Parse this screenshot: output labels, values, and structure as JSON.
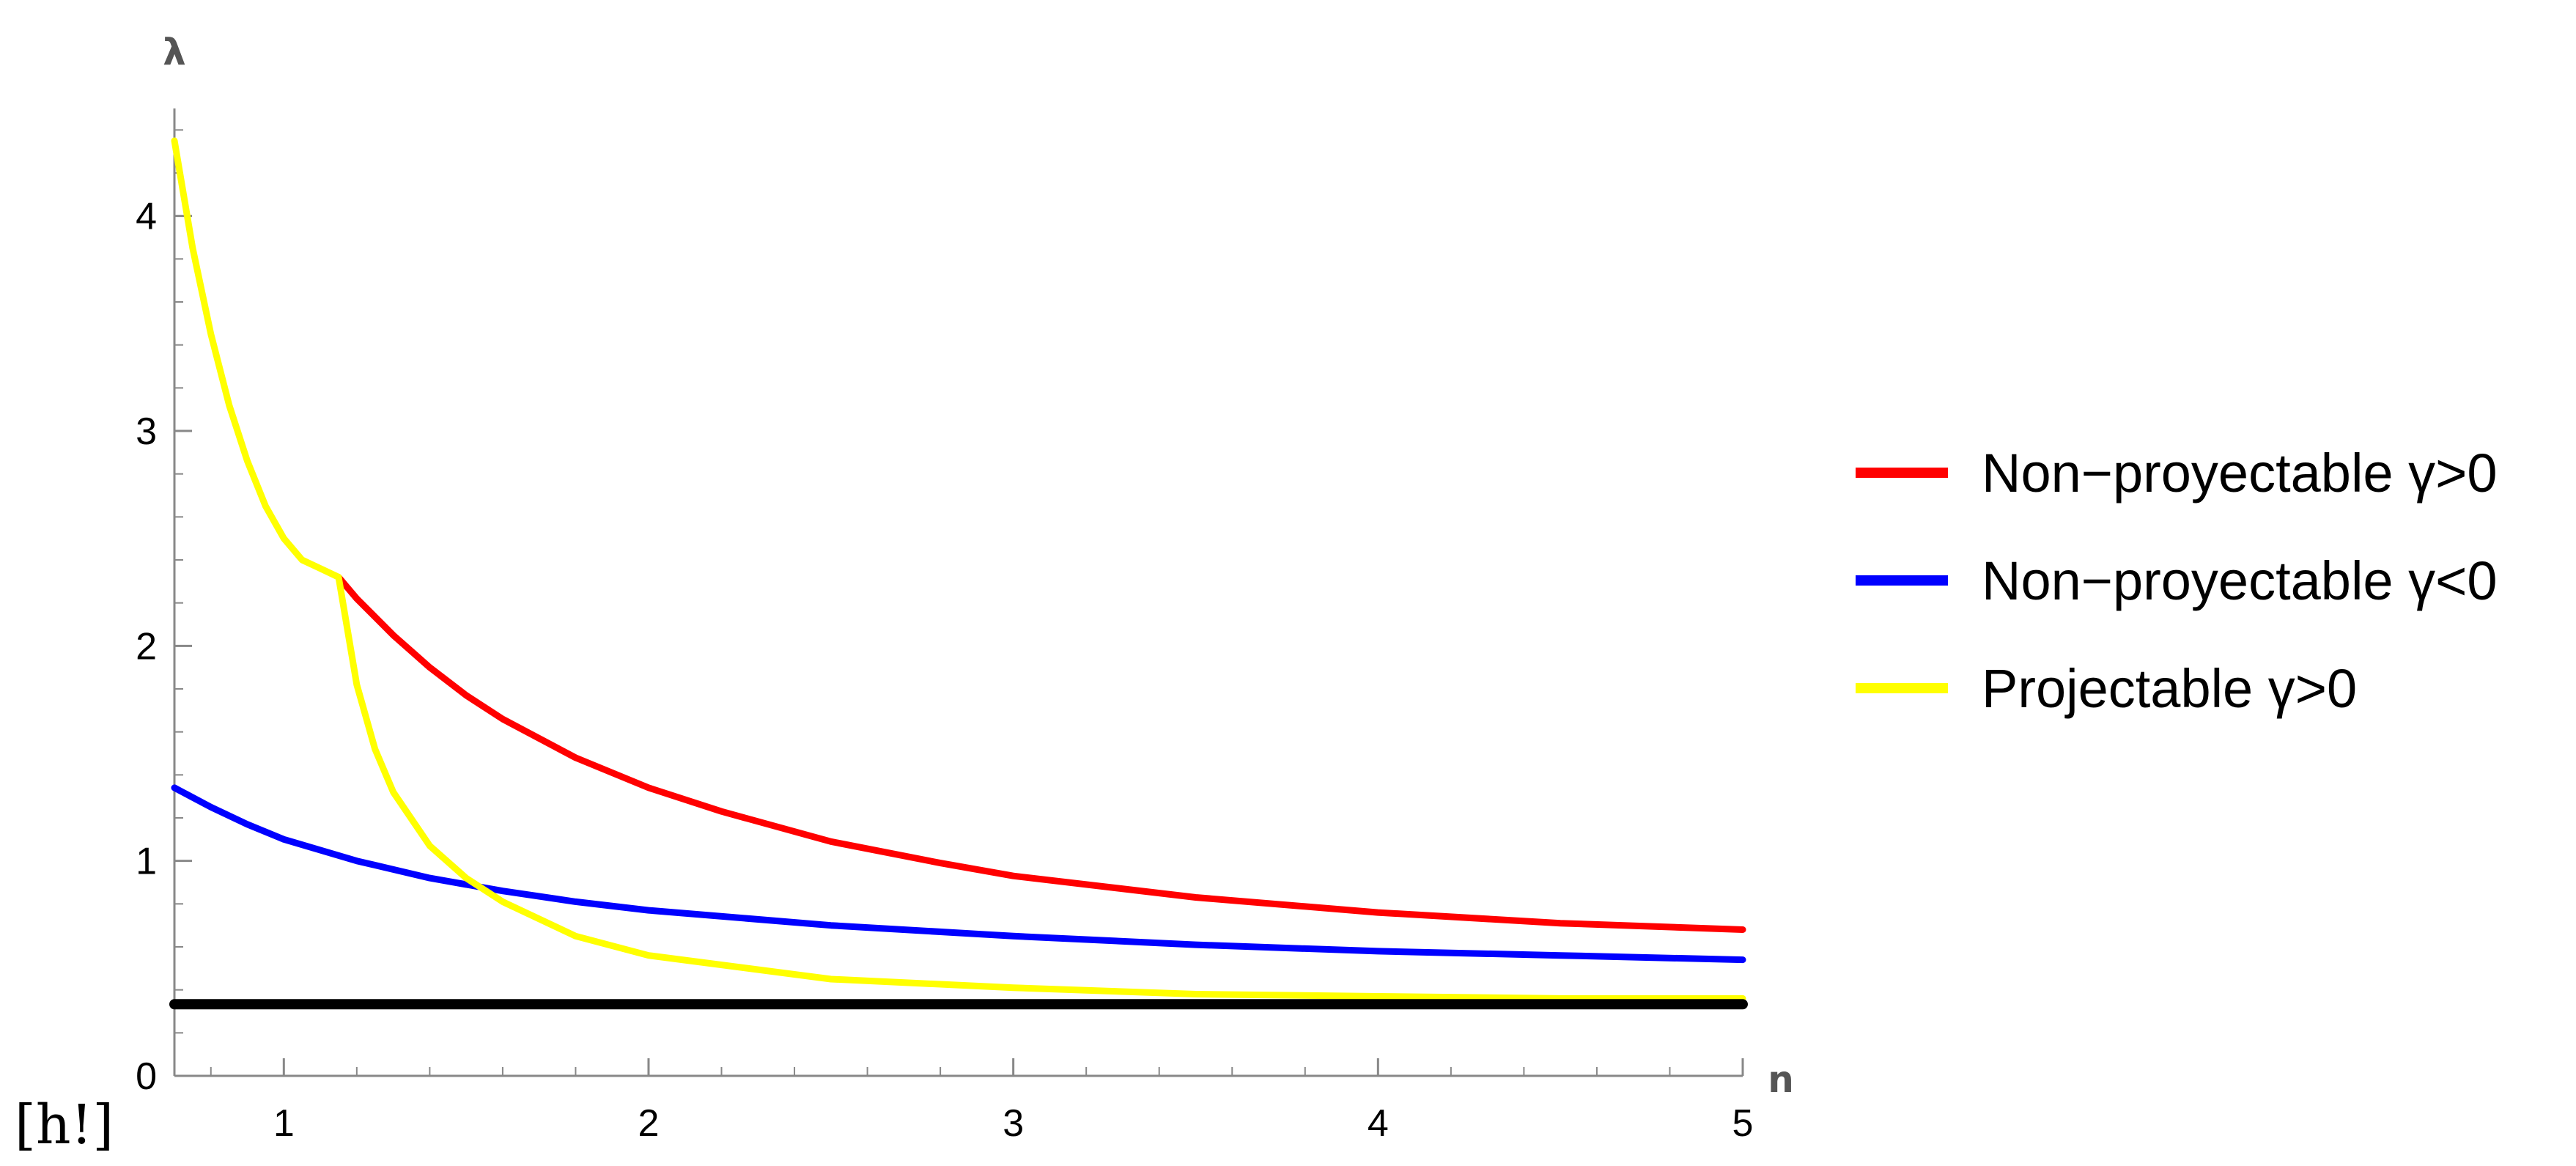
{
  "corner_label": "[h!]",
  "chart_data": {
    "type": "line",
    "title": "",
    "xlabel": "n",
    "ylabel": "λ",
    "xlim": [
      0.7,
      5
    ],
    "ylim": [
      0,
      4.5
    ],
    "x_ticks": [
      1,
      2,
      3,
      4,
      5
    ],
    "x_tick_labels": [
      "1",
      "2",
      "3",
      "4",
      "5"
    ],
    "y_ticks": [
      0,
      1,
      2,
      3,
      4
    ],
    "y_tick_labels": [
      "0",
      "1",
      "2",
      "3",
      "4"
    ],
    "grid": false,
    "legend_position": "right",
    "series": [
      {
        "name": "Non−proyectable γ>0",
        "color": "#ff0000",
        "x": [
          1.15,
          1.2,
          1.3,
          1.4,
          1.5,
          1.6,
          1.8,
          2.0,
          2.2,
          2.5,
          2.8,
          3.0,
          3.5,
          4.0,
          4.5,
          5.0
        ],
        "y": [
          2.32,
          2.22,
          2.05,
          1.9,
          1.77,
          1.66,
          1.48,
          1.34,
          1.23,
          1.09,
          0.99,
          0.93,
          0.83,
          0.76,
          0.71,
          0.68
        ]
      },
      {
        "name": "Non−proyectable γ<0",
        "color": "#0000ff",
        "x": [
          0.7,
          0.8,
          0.9,
          1.0,
          1.2,
          1.4,
          1.6,
          1.8,
          2.0,
          2.5,
          3.0,
          3.5,
          4.0,
          4.5,
          5.0
        ],
        "y": [
          1.34,
          1.25,
          1.17,
          1.1,
          1.0,
          0.92,
          0.86,
          0.81,
          0.77,
          0.7,
          0.65,
          0.61,
          0.58,
          0.56,
          0.54
        ]
      },
      {
        "name": "Projectable γ>0",
        "color": "#ffff00",
        "x": [
          0.7,
          0.75,
          0.8,
          0.85,
          0.9,
          0.95,
          1.0,
          1.05,
          1.1,
          1.15,
          1.2,
          1.25,
          1.3,
          1.4,
          1.5,
          1.6,
          1.8,
          2.0,
          2.5,
          3.0,
          3.5,
          4.0,
          4.5,
          5.0
        ],
        "y": [
          4.35,
          3.85,
          3.45,
          3.12,
          2.86,
          2.65,
          2.5,
          2.4,
          2.36,
          2.32,
          1.82,
          1.52,
          1.32,
          1.07,
          0.92,
          0.81,
          0.65,
          0.56,
          0.45,
          0.41,
          0.38,
          0.37,
          0.36,
          0.36
        ]
      },
      {
        "name": "",
        "color": "#000000",
        "x": [
          0.7,
          5.0
        ],
        "y": [
          0.333,
          0.333
        ]
      }
    ]
  }
}
